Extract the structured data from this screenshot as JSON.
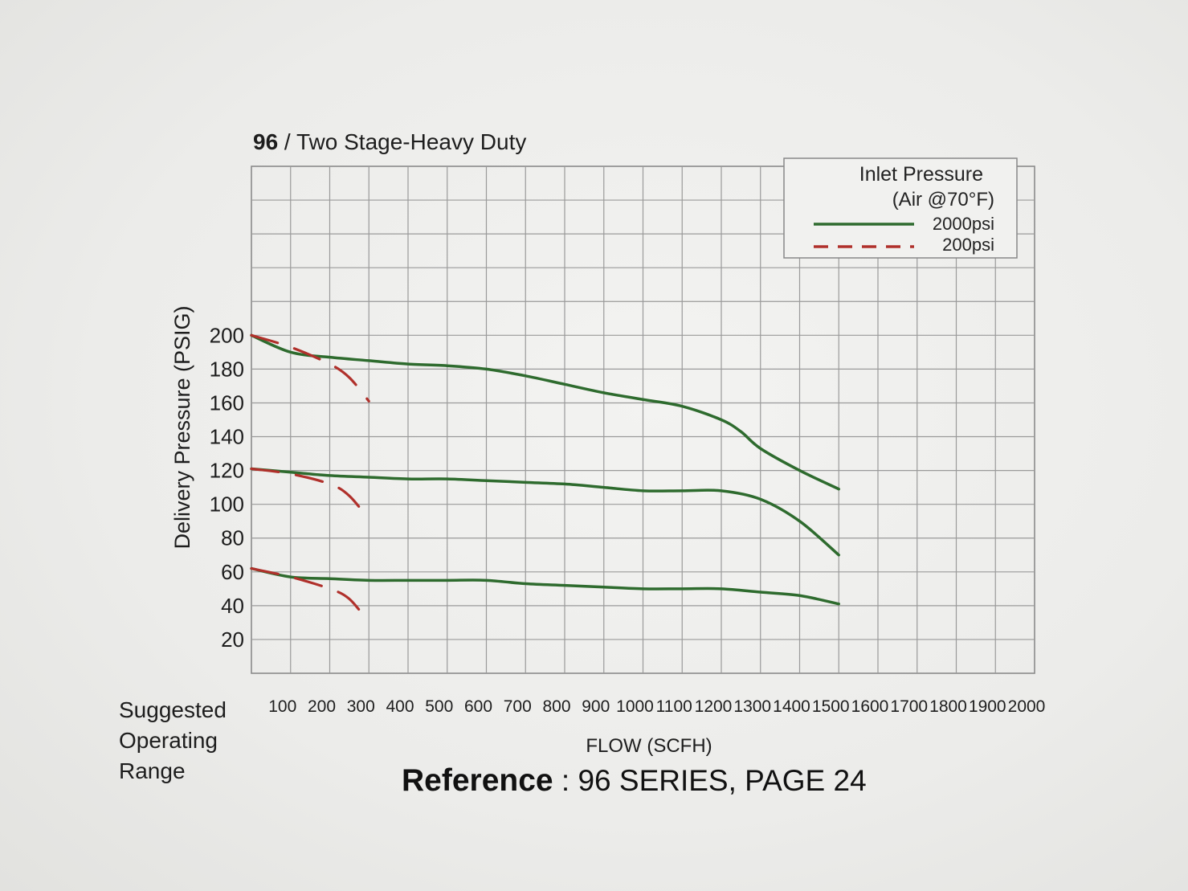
{
  "chart_data": {
    "type": "line",
    "title": {
      "number": "96",
      "separator": " / ",
      "text": "Two Stage-Heavy Duty"
    },
    "xlabel": "FLOW (SCFH)",
    "ylabel": "Delivery Pressure (PSIG)",
    "xlim": [
      0,
      2000
    ],
    "ylim": [
      0,
      200
    ],
    "x_ticks": [
      "100",
      "200",
      "300",
      "400",
      "500",
      "600",
      "700",
      "800",
      "900",
      "1000",
      "1100",
      "1200",
      "1300",
      "1400",
      "1500",
      "1600",
      "1700",
      "1800",
      "1900",
      "2000"
    ],
    "y_ticks": [
      "20",
      "40",
      "60",
      "80",
      "100",
      "120",
      "140",
      "160",
      "180",
      "200"
    ],
    "grid": true,
    "legend": {
      "title_line1": "Inlet Pressure",
      "title_line2": "(Air @70°F)",
      "placement": "top-right",
      "entries": [
        {
          "label": "2000psi",
          "style": "solid",
          "color": "#2e6b2e"
        },
        {
          "label": "200psi",
          "style": "dashed",
          "color": "#b0302b"
        }
      ]
    },
    "series": [
      {
        "inlet": "2000psi",
        "points": [
          [
            0,
            200
          ],
          [
            100,
            190
          ],
          [
            200,
            187
          ],
          [
            300,
            185
          ],
          [
            400,
            183
          ],
          [
            500,
            182
          ],
          [
            600,
            180
          ],
          [
            700,
            176
          ],
          [
            800,
            171
          ],
          [
            900,
            166
          ],
          [
            1000,
            162
          ],
          [
            1100,
            158
          ],
          [
            1200,
            150
          ],
          [
            1250,
            143
          ],
          [
            1300,
            133
          ],
          [
            1400,
            120
          ],
          [
            1500,
            109
          ]
        ]
      },
      {
        "inlet": "2000psi",
        "points": [
          [
            0,
            121
          ],
          [
            100,
            119
          ],
          [
            200,
            117
          ],
          [
            300,
            116
          ],
          [
            400,
            115
          ],
          [
            500,
            115
          ],
          [
            600,
            114
          ],
          [
            700,
            113
          ],
          [
            800,
            112
          ],
          [
            900,
            110
          ],
          [
            1000,
            108
          ],
          [
            1100,
            108
          ],
          [
            1200,
            108
          ],
          [
            1300,
            103
          ],
          [
            1400,
            90
          ],
          [
            1500,
            70
          ]
        ]
      },
      {
        "inlet": "2000psi",
        "points": [
          [
            0,
            62
          ],
          [
            100,
            57
          ],
          [
            200,
            56
          ],
          [
            300,
            55
          ],
          [
            400,
            55
          ],
          [
            500,
            55
          ],
          [
            600,
            55
          ],
          [
            700,
            53
          ],
          [
            800,
            52
          ],
          [
            900,
            51
          ],
          [
            1000,
            50
          ],
          [
            1100,
            50
          ],
          [
            1200,
            50
          ],
          [
            1300,
            48
          ],
          [
            1400,
            46
          ],
          [
            1500,
            41
          ]
        ]
      },
      {
        "inlet": "200psi",
        "points": [
          [
            0,
            200
          ],
          [
            100,
            193
          ],
          [
            200,
            183
          ],
          [
            250,
            175
          ],
          [
            300,
            161
          ]
        ]
      },
      {
        "inlet": "200psi",
        "points": [
          [
            0,
            121
          ],
          [
            100,
            118
          ],
          [
            200,
            112
          ],
          [
            250,
            105
          ],
          [
            300,
            91
          ]
        ]
      },
      {
        "inlet": "200psi",
        "points": [
          [
            0,
            62
          ],
          [
            100,
            57
          ],
          [
            200,
            50
          ],
          [
            250,
            44
          ],
          [
            300,
            30
          ]
        ]
      }
    ]
  },
  "notes": {
    "suggested_line1": "Suggested",
    "suggested_line2": "Operating",
    "suggested_line3": "Range",
    "reference_bold": "Reference",
    "reference_rest": " : 96 SERIES, PAGE 24"
  }
}
